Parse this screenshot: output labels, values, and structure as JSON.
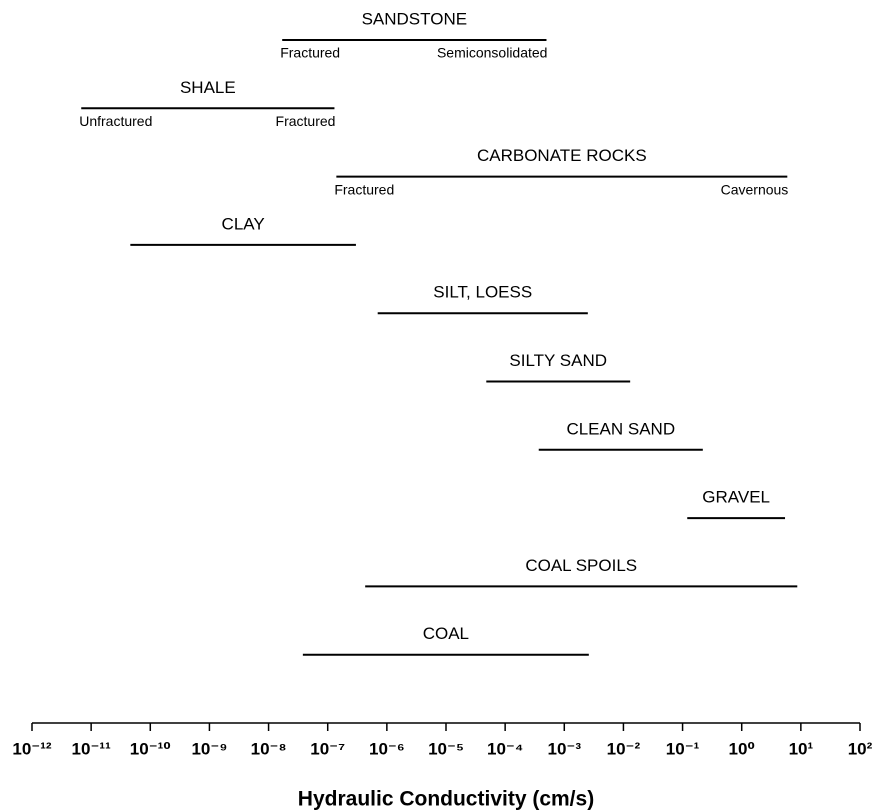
{
  "chart_data": {
    "type": "range",
    "xlabel": "Hydraulic Conductivity (cm/s)",
    "xscale": "log",
    "xlim": [
      1e-12,
      100
    ],
    "xticks": [
      {
        "value": 1e-12,
        "label": "10⁻¹²"
      },
      {
        "value": 1e-11,
        "label": "10⁻¹¹"
      },
      {
        "value": 1e-10,
        "label": "10⁻¹⁰"
      },
      {
        "value": 1e-09,
        "label": "10⁻⁹"
      },
      {
        "value": 1e-08,
        "label": "10⁻⁸"
      },
      {
        "value": 1e-07,
        "label": "10⁻⁷"
      },
      {
        "value": 1e-06,
        "label": "10⁻⁶"
      },
      {
        "value": 1e-05,
        "label": "10⁻⁵"
      },
      {
        "value": 0.0001,
        "label": "10⁻⁴"
      },
      {
        "value": 0.001,
        "label": "10⁻³"
      },
      {
        "value": 0.01,
        "label": "10⁻²"
      },
      {
        "value": 0.1,
        "label": "10⁻¹"
      },
      {
        "value": 1,
        "label": "10⁰"
      },
      {
        "value": 10,
        "label": "10¹"
      },
      {
        "value": 100,
        "label": "10²"
      }
    ],
    "color": "#000000",
    "series": [
      {
        "name": "SANDSTONE",
        "values": [
          1.7e-08,
          0.0005
        ],
        "low_label": "Fractured",
        "high_label": "Semiconsolidated"
      },
      {
        "name": "SHALE",
        "values": [
          6.8e-12,
          1.3e-07
        ],
        "low_label": "Unfractured",
        "high_label": "Fractured"
      },
      {
        "name": "CARBONATE ROCKS",
        "values": [
          1.4e-07,
          5.9
        ],
        "low_label": "Fractured",
        "high_label": "Cavernous"
      },
      {
        "name": "CLAY",
        "values": [
          4.6e-11,
          3e-07
        ]
      },
      {
        "name": "SILT, LOESS",
        "values": [
          7e-07,
          0.0025
        ]
      },
      {
        "name": "SILTY SAND",
        "values": [
          4.8e-05,
          0.013
        ]
      },
      {
        "name": "CLEAN SAND",
        "values": [
          0.00037,
          0.22
        ]
      },
      {
        "name": "GRAVEL",
        "values": [
          0.12,
          5.4
        ]
      },
      {
        "name": "COAL SPOILS",
        "values": [
          4.3e-07,
          8.7
        ]
      },
      {
        "name": "COAL",
        "values": [
          3.8e-08,
          0.0026
        ]
      }
    ]
  }
}
